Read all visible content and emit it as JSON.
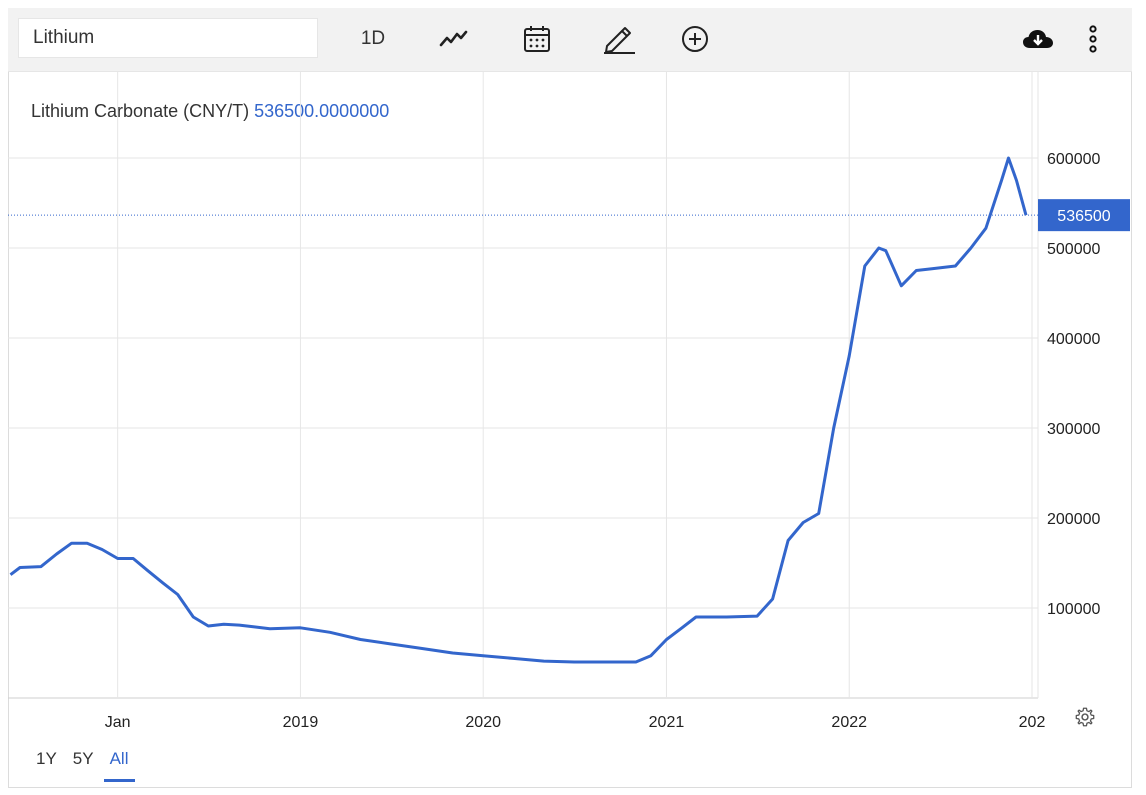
{
  "toolbar": {
    "search_value": "Lithium",
    "interval_label": "1D",
    "icons": [
      "line-chart-icon",
      "calendar-icon",
      "pencil-icon",
      "plus-circle-icon",
      "cloud-download-icon",
      "more-vertical-icon"
    ]
  },
  "legend": {
    "name": "Lithium Carbonate (CNY/T)",
    "value": "536500.0000000"
  },
  "ranges": [
    "1Y",
    "5Y",
    "All"
  ],
  "active_range": "All",
  "colors": {
    "line": "#3366cc",
    "accent": "#3366cc",
    "grid": "#e6e6e6"
  },
  "chart_data": {
    "type": "line",
    "title": "",
    "xlabel": "",
    "ylabel": "",
    "x_ticks": [
      "Jan",
      "2019",
      "2020",
      "2021",
      "2022",
      "202"
    ],
    "y_ticks": [
      100000,
      200000,
      300000,
      400000,
      500000,
      600000
    ],
    "y_tick_labels": [
      "100000",
      "200000",
      "300000",
      "400000",
      "500000",
      "600000"
    ],
    "ylim": [
      0,
      650000
    ],
    "grid": true,
    "last_value_label": "536500",
    "series": [
      {
        "x": [
          "2017-06-01",
          "2017-06-20",
          "2017-08-01",
          "2017-09-01",
          "2017-10-01",
          "2017-11-01",
          "2017-12-01",
          "2018-01-01",
          "2018-02-01",
          "2018-03-01",
          "2018-04-01",
          "2018-05-01",
          "2018-06-01",
          "2018-07-01",
          "2018-08-01",
          "2018-09-01",
          "2018-10-01",
          "2018-11-01",
          "2019-01-01",
          "2019-03-01",
          "2019-05-01",
          "2019-07-01",
          "2019-09-01",
          "2019-11-01",
          "2020-01-01",
          "2020-03-01",
          "2020-05-01",
          "2020-07-01",
          "2020-09-01",
          "2020-11-01",
          "2020-12-01",
          "2021-01-01",
          "2021-02-01",
          "2021-03-01",
          "2021-05-01",
          "2021-07-01",
          "2021-08-01",
          "2021-09-01",
          "2021-10-01",
          "2021-11-01",
          "2021-12-01",
          "2022-01-01",
          "2022-02-01",
          "2022-03-01",
          "2022-03-15",
          "2022-04-15",
          "2022-05-15",
          "2022-06-15",
          "2022-08-01",
          "2022-09-01",
          "2022-10-01",
          "2022-11-01",
          "2022-11-15",
          "2022-12-01",
          "2022-12-20"
        ],
        "y": [
          137000,
          145000,
          146000,
          160000,
          172000,
          172000,
          165000,
          155000,
          155000,
          142000,
          128000,
          115000,
          90000,
          80000,
          82000,
          81000,
          79000,
          77000,
          78000,
          73000,
          65000,
          60000,
          55000,
          50000,
          47000,
          44000,
          41000,
          40000,
          40000,
          40000,
          47000,
          65000,
          78000,
          90000,
          90000,
          91000,
          110000,
          175000,
          195000,
          205000,
          300000,
          380000,
          480000,
          500000,
          497000,
          458000,
          475000,
          477000,
          480000,
          500000,
          522000,
          575000,
          600000,
          575000,
          536500
        ]
      }
    ]
  }
}
